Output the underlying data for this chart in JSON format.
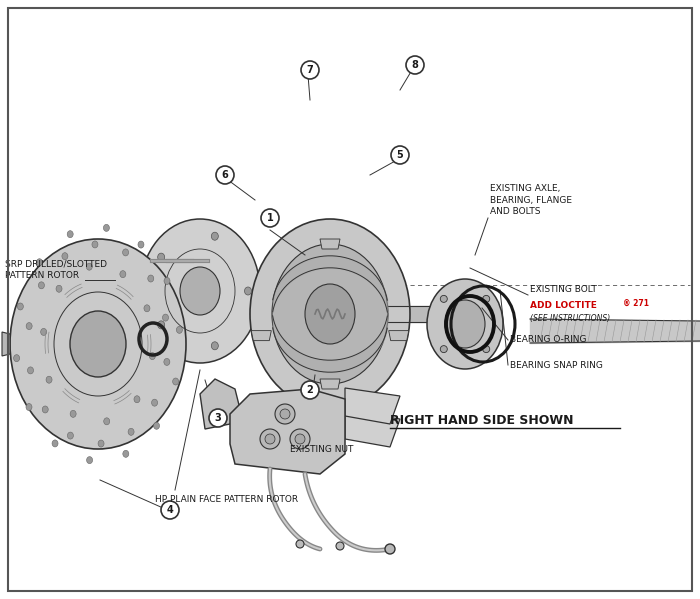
{
  "bg_color": "#ffffff",
  "line_color": "#2a2a2a",
  "part_fill": "#d8d8d8",
  "part_stroke": "#333333",
  "title": "RIGHT HAND SIDE SHOWN",
  "labels": {
    "srp_rotor": "SRP DRILLED/SLOTTED\nPATTERN ROTOR",
    "hp_rotor": "HP PLAIN FACE PATTERN ROTOR",
    "existing_nut": "EXISTING NUT",
    "caliper": "6",
    "brake_pad": "5",
    "bolt7": "7",
    "bolt8": "8",
    "part1": "1",
    "part2": "2",
    "part3": "3",
    "part4": "4",
    "existing_axle": "EXISTING AXLE,\nBEARING, FLANGE\nAND BOLTS",
    "existing_bolt": "EXISTING BOLT",
    "add_loctite": "ADD LOCTITE",
    "loctite_num": "® 271",
    "see_inst": "(SEE INSTRUCTIONS)",
    "bearing_oring": "BEARING O-RING",
    "bearing_snap": "BEARING SNAP RING"
  },
  "red_color": "#cc0000",
  "dark_color": "#1a1a1a"
}
